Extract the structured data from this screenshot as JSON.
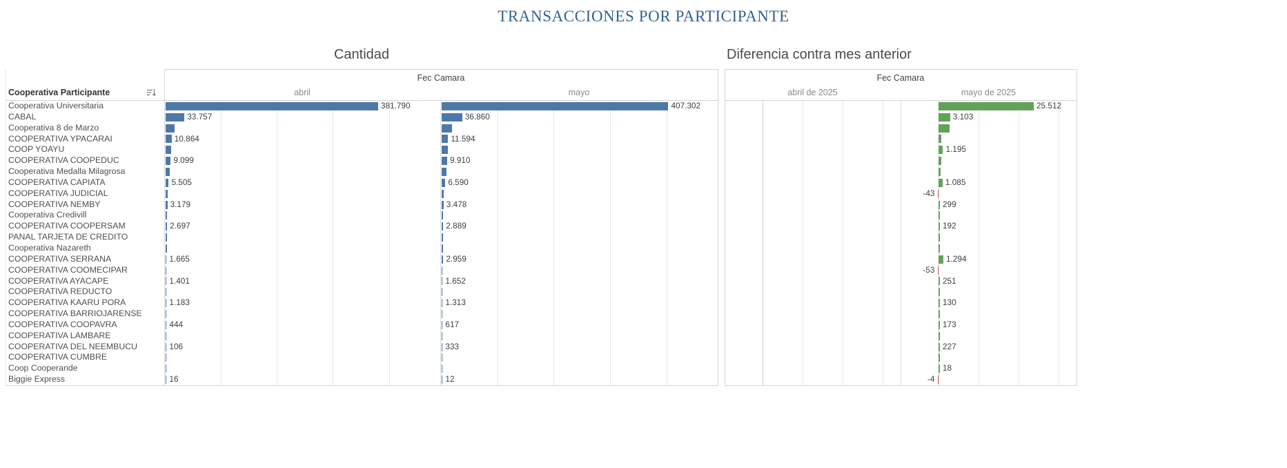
{
  "title": "TRANSACCIONES POR PARTICIPANTE",
  "panels": {
    "cantidad": {
      "title": "Cantidad",
      "group_header": "Fec Camara",
      "columns": [
        "abril",
        "mayo"
      ],
      "row_header": "Cooperativa Participante"
    },
    "diferencia": {
      "title": "Diferencia contra mes anterior",
      "group_header": "Fec Camara",
      "columns": [
        "abril de 2025",
        "mayo de 2025"
      ]
    }
  },
  "colors": {
    "bar_blue": "#4e79a7",
    "diff_positive": "#65a05b",
    "diff_negative": "#e26b73",
    "gridline": "#e6e6e6",
    "zero_line": "#cfcfcf",
    "title_blue": "#35618f"
  },
  "chart_data": {
    "type": "bar",
    "title": "TRANSACCIONES POR PARTICIPANTE",
    "subcharts": [
      "Cantidad",
      "Diferencia contra mes anterior"
    ],
    "x_axis_max_cantidad": 491000,
    "diff_axis": {
      "min": -10000,
      "max": 36000
    },
    "rows": [
      {
        "name": "Cooperativa Universitaria",
        "abril": 381790,
        "abril_label": "381.790",
        "mayo": 407302,
        "mayo_label": "407.302",
        "diff": 25512,
        "diff_label": "25.512"
      },
      {
        "name": "CABAL",
        "abril": 33757,
        "abril_label": "33.757",
        "mayo": 36860,
        "mayo_label": "36.860",
        "diff": 3103,
        "diff_label": "3.103"
      },
      {
        "name": "Cooperativa 8 de Marzo",
        "abril": 16000,
        "abril_label": "",
        "mayo": 19000,
        "mayo_label": "",
        "diff": 3000,
        "diff_label": ""
      },
      {
        "name": "COOPERATIVA YPACARAI",
        "abril": 10864,
        "abril_label": "10.864",
        "mayo": 11594,
        "mayo_label": "11.594",
        "diff": 730,
        "diff_label": ""
      },
      {
        "name": "COOP YOAYU",
        "abril": 10000,
        "abril_label": "",
        "mayo": 11195,
        "mayo_label": "",
        "diff": 1195,
        "diff_label": "1.195"
      },
      {
        "name": "COOPERATIVA COOPEDUC",
        "abril": 9099,
        "abril_label": "9.099",
        "mayo": 9910,
        "mayo_label": "9.910",
        "diff": 811,
        "diff_label": ""
      },
      {
        "name": "Cooperativa Medalla Milagrosa",
        "abril": 8000,
        "abril_label": "",
        "mayo": 8500,
        "mayo_label": "",
        "diff": 500,
        "diff_label": ""
      },
      {
        "name": "COOPERATIVA CAPIATA",
        "abril": 5505,
        "abril_label": "5.505",
        "mayo": 6590,
        "mayo_label": "6.590",
        "diff": 1085,
        "diff_label": "1.085"
      },
      {
        "name": "COOPERATIVA JUDICIAL",
        "abril": 4300,
        "abril_label": "",
        "mayo": 4257,
        "mayo_label": "",
        "diff": -43,
        "diff_label": "-43"
      },
      {
        "name": "COOPERATIVA NEMBY",
        "abril": 3179,
        "abril_label": "3.179",
        "mayo": 3478,
        "mayo_label": "3.478",
        "diff": 299,
        "diff_label": "299"
      },
      {
        "name": "Cooperativa Credivill",
        "abril": 2900,
        "abril_label": "",
        "mayo": 3000,
        "mayo_label": "",
        "diff": 100,
        "diff_label": ""
      },
      {
        "name": "COOPERATIVA COOPERSAM",
        "abril": 2697,
        "abril_label": "2.697",
        "mayo": 2889,
        "mayo_label": "2.889",
        "diff": 192,
        "diff_label": "192"
      },
      {
        "name": "PANAL TARJETA DE CREDITO",
        "abril": 2400,
        "abril_label": "",
        "mayo": 2550,
        "mayo_label": "",
        "diff": 150,
        "diff_label": ""
      },
      {
        "name": "Cooperativa Nazareth",
        "abril": 2000,
        "abril_label": "",
        "mayo": 2100,
        "mayo_label": "",
        "diff": 100,
        "diff_label": ""
      },
      {
        "name": "COOPERATIVA SERRANA",
        "abril": 1665,
        "abril_label": "1.665",
        "mayo": 2959,
        "mayo_label": "2.959",
        "diff": 1294,
        "diff_label": "1.294"
      },
      {
        "name": "COOPERATIVA COOMECIPAR",
        "abril": 1500,
        "abril_label": "",
        "mayo": 1447,
        "mayo_label": "",
        "diff": -53,
        "diff_label": "-53"
      },
      {
        "name": "COOPERATIVA AYACAPE",
        "abril": 1401,
        "abril_label": "1.401",
        "mayo": 1652,
        "mayo_label": "1.652",
        "diff": 251,
        "diff_label": "251"
      },
      {
        "name": "COOPERATIVA REDUCTO",
        "abril": 1300,
        "abril_label": "",
        "mayo": 1400,
        "mayo_label": "",
        "diff": 100,
        "diff_label": ""
      },
      {
        "name": "COOPERATIVA KAARU PORA",
        "abril": 1183,
        "abril_label": "1.183",
        "mayo": 1313,
        "mayo_label": "1.313",
        "diff": 130,
        "diff_label": "130"
      },
      {
        "name": "COOPERATIVA BARRIOJARENSE",
        "abril": 800,
        "abril_label": "",
        "mayo": 900,
        "mayo_label": "",
        "diff": 100,
        "diff_label": ""
      },
      {
        "name": "COOPERATIVA COOPAVRA",
        "abril": 444,
        "abril_label": "444",
        "mayo": 617,
        "mayo_label": "617",
        "diff": 173,
        "diff_label": "173"
      },
      {
        "name": "COOPERATIVA LAMBARE",
        "abril": 300,
        "abril_label": "",
        "mayo": 350,
        "mayo_label": "",
        "diff": 50,
        "diff_label": ""
      },
      {
        "name": "COOPERATIVA DEL NEEMBUCU",
        "abril": 106,
        "abril_label": "106",
        "mayo": 333,
        "mayo_label": "333",
        "diff": 227,
        "diff_label": "227"
      },
      {
        "name": "COOPERATIVA CUMBRE",
        "abril": 60,
        "abril_label": "",
        "mayo": 80,
        "mayo_label": "",
        "diff": 20,
        "diff_label": ""
      },
      {
        "name": "Coop Cooperande",
        "abril": 30,
        "abril_label": "",
        "mayo": 48,
        "mayo_label": "",
        "diff": 18,
        "diff_label": "18"
      },
      {
        "name": "Biggie Express",
        "abril": 16,
        "abril_label": "16",
        "mayo": 12,
        "mayo_label": "12",
        "diff": -4,
        "diff_label": "-4"
      }
    ]
  }
}
